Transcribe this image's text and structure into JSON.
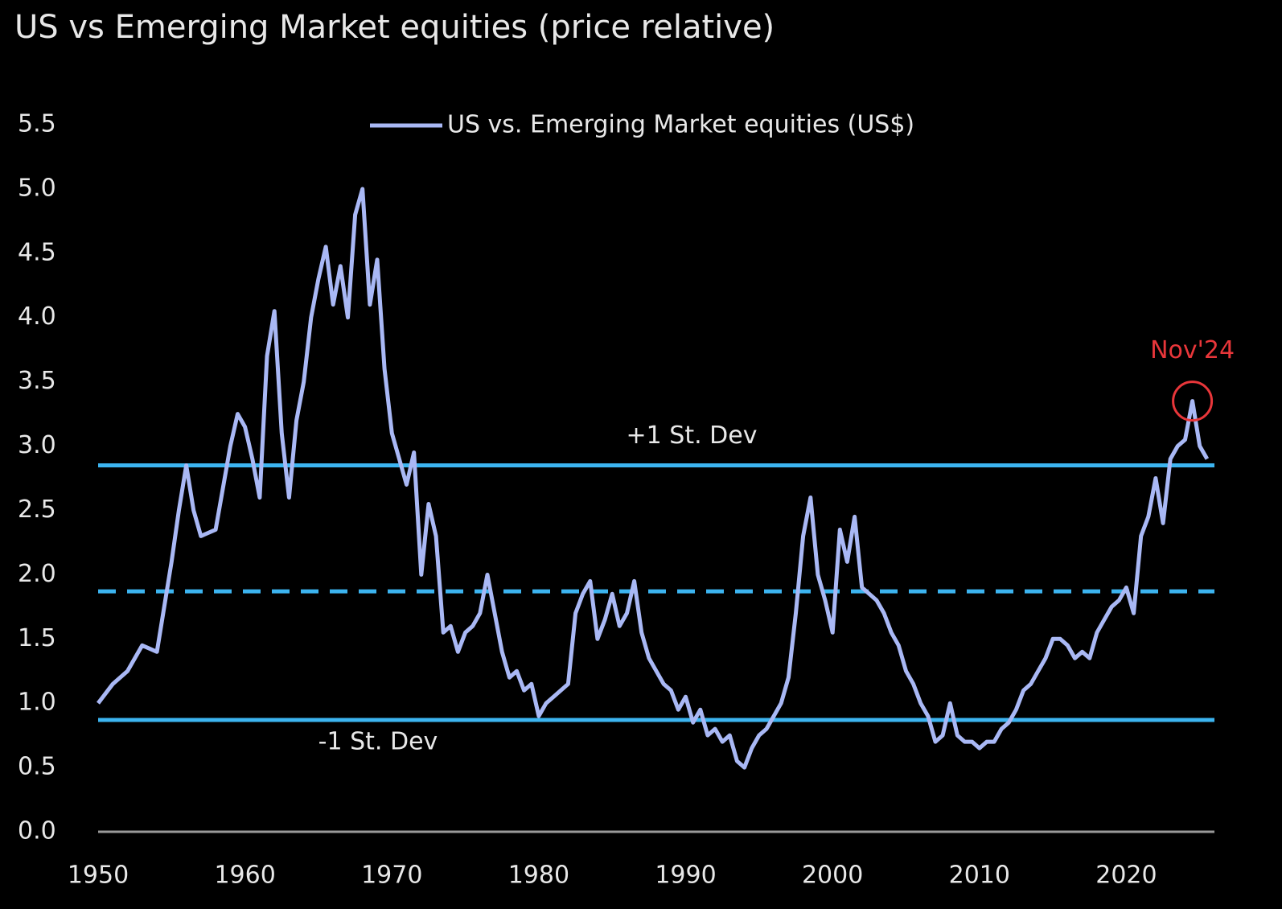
{
  "chart_data": {
    "type": "line",
    "title": "US vs Emerging Market equities (price relative)",
    "legend": "top-center",
    "grid": false,
    "x": [
      1950,
      1951,
      1952,
      1953,
      1954,
      1955,
      1955.5,
      1956,
      1956.5,
      1957,
      1958,
      1959,
      1959.5,
      1960,
      1960.5,
      1961,
      1961.5,
      1962,
      1962.5,
      1963,
      1963.5,
      1964,
      1964.5,
      1965,
      1965.5,
      1966,
      1966.5,
      1967,
      1967.5,
      1968,
      1968.5,
      1969,
      1969.5,
      1970,
      1970.5,
      1971,
      1971.5,
      1972,
      1972.5,
      1973,
      1973.5,
      1974,
      1974.5,
      1975,
      1975.5,
      1976,
      1976.5,
      1977,
      1977.5,
      1978,
      1978.5,
      1979,
      1979.5,
      1980,
      1980.5,
      1981,
      1982,
      1982.5,
      1983,
      1983.5,
      1984,
      1984.5,
      1985,
      1985.5,
      1986,
      1986.5,
      1987,
      1987.5,
      1988,
      1988.5,
      1989,
      1989.5,
      1990,
      1990.5,
      1991,
      1991.5,
      1992,
      1992.5,
      1993,
      1993.5,
      1994,
      1994.5,
      1995,
      1995.5,
      1996,
      1996.5,
      1997,
      1997.5,
      1998,
      1998.5,
      1999,
      1999.5,
      2000,
      2000.5,
      2001,
      2001.5,
      2002,
      2002.5,
      2003,
      2003.5,
      2004,
      2004.5,
      2005,
      2005.5,
      2006,
      2006.5,
      2007,
      2007.5,
      2008,
      2008.5,
      2009,
      2009.5,
      2010,
      2010.5,
      2011,
      2011.5,
      2012,
      2012.5,
      2013,
      2013.5,
      2014,
      2014.5,
      2015,
      2015.5,
      2016,
      2016.5,
      2017,
      2017.5,
      2018,
      2018.5,
      2019,
      2019.5,
      2020,
      2020.5,
      2021,
      2021.5,
      2022,
      2022.5,
      2023,
      2023.5,
      2024,
      2024.5,
      2025,
      2025.5
    ],
    "series": [
      {
        "name": "US vs. Emerging Market equities (US$)",
        "color": "#a9b8f5",
        "values": [
          1.0,
          1.15,
          1.25,
          1.45,
          1.4,
          2.1,
          2.5,
          2.85,
          2.5,
          2.3,
          2.35,
          3.0,
          3.25,
          3.15,
          2.9,
          2.6,
          3.7,
          4.05,
          3.1,
          2.6,
          3.2,
          3.5,
          4.0,
          4.3,
          4.55,
          4.1,
          4.4,
          4.0,
          4.8,
          5.0,
          4.1,
          4.45,
          3.6,
          3.1,
          2.9,
          2.7,
          2.95,
          2.0,
          2.55,
          2.3,
          1.55,
          1.6,
          1.4,
          1.55,
          1.6,
          1.7,
          2.0,
          1.7,
          1.4,
          1.2,
          1.25,
          1.1,
          1.15,
          0.9,
          1.0,
          1.05,
          1.15,
          1.7,
          1.85,
          1.95,
          1.5,
          1.65,
          1.85,
          1.6,
          1.7,
          1.95,
          1.55,
          1.35,
          1.25,
          1.15,
          1.1,
          0.95,
          1.05,
          0.85,
          0.95,
          0.75,
          0.8,
          0.7,
          0.75,
          0.55,
          0.5,
          0.65,
          0.75,
          0.8,
          0.9,
          1.0,
          1.2,
          1.7,
          2.3,
          2.6,
          2.0,
          1.8,
          1.55,
          2.35,
          2.1,
          2.45,
          1.9,
          1.85,
          1.8,
          1.7,
          1.55,
          1.45,
          1.25,
          1.15,
          1.0,
          0.9,
          0.7,
          0.75,
          1.0,
          0.75,
          0.7,
          0.7,
          0.65,
          0.7,
          0.7,
          0.8,
          0.85,
          0.95,
          1.1,
          1.15,
          1.25,
          1.35,
          1.5,
          1.5,
          1.45,
          1.35,
          1.4,
          1.35,
          1.55,
          1.65,
          1.75,
          1.8,
          1.9,
          1.7,
          2.3,
          2.45,
          2.75,
          2.4,
          2.9,
          3.0,
          3.05,
          3.35,
          3.0,
          2.9
        ]
      }
    ],
    "reference_lines": [
      {
        "value": 2.85,
        "label": "+1 St. Dev",
        "color": "#3cb4f0",
        "style": "solid"
      },
      {
        "value": 1.87,
        "color": "#3cb4f0",
        "style": "dashed"
      },
      {
        "value": 0.87,
        "label": "-1 St. Dev",
        "color": "#3cb4f0",
        "style": "solid"
      }
    ],
    "annotations": [
      {
        "text": "Nov'24",
        "x": 2024.5,
        "y": 3.35,
        "color": "#e8363a"
      }
    ],
    "xlim": [
      1950,
      2026
    ],
    "xticks": [
      1950,
      1960,
      1970,
      1980,
      1990,
      2000,
      2010,
      2020
    ],
    "ylim": [
      0,
      5.5
    ],
    "yticks": [
      {
        "value": 0,
        "label": "0.0"
      },
      0.5,
      {
        "value": 1,
        "label": "1.0"
      },
      1.5,
      {
        "value": 2,
        "label": "2.0"
      },
      2.5,
      {
        "value": 3,
        "label": "3.0"
      },
      3.5,
      {
        "value": 4,
        "label": "4.0"
      },
      4.5,
      {
        "value": 5,
        "label": "5.0"
      },
      5.5
    ]
  }
}
